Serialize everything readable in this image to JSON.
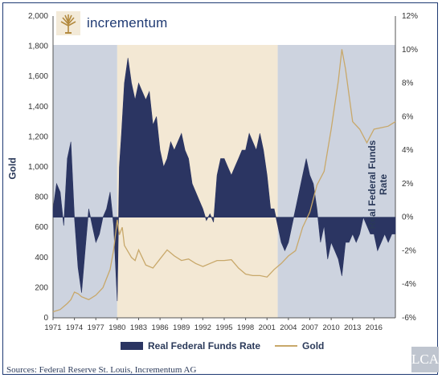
{
  "brand": {
    "name": "incrementum",
    "watermark": "LCA"
  },
  "sources": "Sources: Federal Reserve St. Louis, Incrementum AG",
  "chart_data": {
    "type": "area",
    "title": "",
    "xlabel": "",
    "ylabel_left": "Gold",
    "ylabel_right": "Real Federal Funds Rate",
    "xlim": [
      1971,
      2019
    ],
    "ylim_left": [
      0,
      2000
    ],
    "ylim_right": [
      -6,
      12
    ],
    "x_ticks": [
      "1971",
      "1974",
      "1977",
      "1980",
      "1983",
      "1986",
      "1989",
      "1992",
      "1995",
      "1998",
      "2001",
      "2004",
      "2007",
      "2010",
      "2013",
      "2016"
    ],
    "y_ticks_left": [
      "0",
      "200",
      "400",
      "600",
      "800",
      "1,000",
      "1,200",
      "1,400",
      "1,600",
      "1,800",
      "2,000"
    ],
    "y_ticks_right": [
      "-6%",
      "-4%",
      "-2%",
      "0%",
      "2%",
      "4%",
      "6%",
      "8%",
      "10%",
      "12%"
    ],
    "shaded_periods": [
      {
        "start": 1971,
        "end": 1980,
        "color": "#cdd3df"
      },
      {
        "start": 1980,
        "end": 2002.5,
        "color": "#f3e8d4"
      },
      {
        "start": 2002.5,
        "end": 2019,
        "color": "#cdd3df"
      }
    ],
    "legend_position": "bottom",
    "series": [
      {
        "name": "Real Federal Funds Rate",
        "axis": "right",
        "style": "area",
        "color": "#2b3562",
        "x": [
          1971,
          1971.5,
          1972,
          1972.5,
          1973,
          1973.5,
          1974,
          1974.5,
          1975,
          1975.5,
          1976,
          1976.5,
          1977,
          1977.5,
          1978,
          1978.5,
          1979,
          1979.5,
          1980,
          1980.3,
          1980.6,
          1981,
          1981.5,
          1982,
          1982.5,
          1983,
          1983.5,
          1984,
          1984.5,
          1985,
          1985.5,
          1986,
          1986.5,
          1987,
          1987.5,
          1988,
          1988.5,
          1989,
          1989.5,
          1990,
          1990.5,
          1991,
          1991.5,
          1992,
          1992.5,
          1993,
          1993.5,
          1994,
          1994.5,
          1995,
          1995.5,
          1996,
          1996.5,
          1997,
          1997.5,
          1998,
          1998.5,
          1999,
          1999.5,
          2000,
          2000.5,
          2001,
          2001.5,
          2002,
          2002.5,
          2003,
          2003.5,
          2004,
          2004.5,
          2005,
          2005.5,
          2006,
          2006.5,
          2007,
          2007.5,
          2008,
          2008.5,
          2009,
          2009.5,
          2010,
          2010.5,
          2011,
          2011.5,
          2012,
          2012.5,
          2013,
          2013.5,
          2014,
          2014.5,
          2015,
          2015.5,
          2016,
          2016.5,
          2017,
          2017.5,
          2018,
          2018.5,
          2019
        ],
        "y": [
          0.5,
          2.0,
          1.5,
          -0.5,
          3.5,
          4.5,
          0.0,
          -3.0,
          -4.5,
          -2.0,
          0.5,
          -0.5,
          -1.5,
          -1.0,
          0.0,
          0.5,
          1.5,
          -0.5,
          -5.0,
          3.0,
          5.0,
          8.0,
          9.5,
          8.0,
          7.0,
          8.0,
          7.5,
          7.0,
          7.5,
          5.5,
          6.0,
          4.0,
          3.0,
          3.5,
          4.5,
          4.0,
          4.5,
          5.0,
          4.0,
          3.5,
          2.0,
          1.5,
          1.0,
          0.5,
          -0.2,
          0.2,
          -0.3,
          2.5,
          3.5,
          3.5,
          3.0,
          2.5,
          3.0,
          3.5,
          4.0,
          4.0,
          5.0,
          4.5,
          4.0,
          5.0,
          4.0,
          2.5,
          0.5,
          0.5,
          -0.5,
          -1.5,
          -2.0,
          -1.5,
          -0.5,
          0.5,
          1.5,
          2.5,
          3.5,
          2.5,
          2.0,
          0.5,
          -1.5,
          -0.5,
          -2.5,
          -1.5,
          -2.0,
          -2.5,
          -3.5,
          -1.5,
          -1.5,
          -1.0,
          -1.5,
          -1.0,
          0.0,
          -0.5,
          -1.0,
          -1.0,
          -2.0,
          -1.5,
          -1.0,
          -1.5,
          -1.0,
          -1.0
        ]
      },
      {
        "name": "Gold",
        "axis": "left",
        "style": "line",
        "color": "#c8a86a",
        "x": [
          1971,
          1972,
          1973,
          1973.5,
          1974,
          1974.5,
          1975,
          1976,
          1977,
          1978,
          1979,
          1979.5,
          1980,
          1980.3,
          1980.7,
          1981,
          1982,
          1982.5,
          1983,
          1984,
          1985,
          1986,
          1987,
          1988,
          1989,
          1990,
          1991,
          1992,
          1993,
          1994,
          1995,
          1996,
          1997,
          1998,
          1999,
          2000,
          2001,
          2002,
          2003,
          2004,
          2005,
          2006,
          2007,
          2008,
          2009,
          2010,
          2011,
          2011.5,
          2012,
          2013,
          2014,
          2015,
          2016,
          2017,
          2018,
          2019
        ],
        "y": [
          40,
          55,
          95,
          120,
          170,
          160,
          140,
          120,
          150,
          200,
          320,
          450,
          650,
          550,
          600,
          480,
          400,
          380,
          450,
          350,
          330,
          390,
          450,
          410,
          380,
          390,
          360,
          340,
          360,
          380,
          380,
          385,
          330,
          290,
          280,
          280,
          270,
          320,
          360,
          410,
          445,
          600,
          700,
          880,
          970,
          1250,
          1570,
          1780,
          1650,
          1300,
          1250,
          1160,
          1250,
          1260,
          1270,
          1300
        ]
      }
    ]
  }
}
